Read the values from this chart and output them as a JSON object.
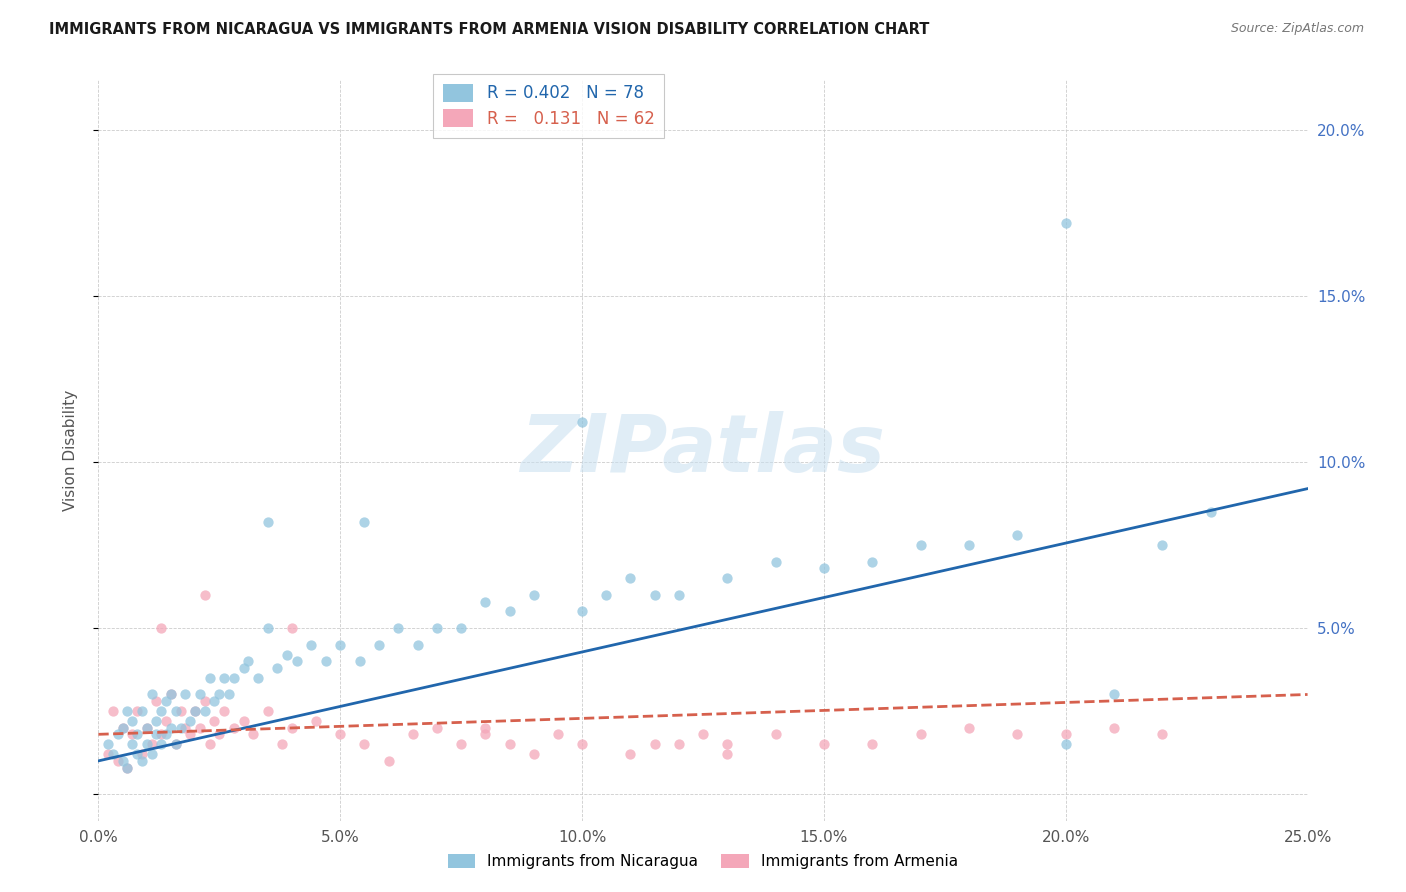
{
  "title": "IMMIGRANTS FROM NICARAGUA VS IMMIGRANTS FROM ARMENIA VISION DISABILITY CORRELATION CHART",
  "source": "Source: ZipAtlas.com",
  "ylabel": "Vision Disability",
  "xlim": [
    0.0,
    0.25
  ],
  "ylim": [
    -0.008,
    0.215
  ],
  "nicaragua_color": "#92c5de",
  "armenia_color": "#f4a7b9",
  "nicaragua_line_color": "#2166ac",
  "armenia_line_color": "#d6604d",
  "R_nicaragua": 0.402,
  "N_nicaragua": 78,
  "R_armenia": 0.131,
  "N_armenia": 62,
  "legend_label_nicaragua": "Immigrants from Nicaragua",
  "legend_label_armenia": "Immigrants from Armenia",
  "watermark": "ZIPatlas",
  "nicaragua_scatter_x": [
    0.002,
    0.003,
    0.004,
    0.005,
    0.005,
    0.006,
    0.006,
    0.007,
    0.007,
    0.008,
    0.008,
    0.009,
    0.009,
    0.01,
    0.01,
    0.011,
    0.011,
    0.012,
    0.012,
    0.013,
    0.013,
    0.014,
    0.014,
    0.015,
    0.015,
    0.016,
    0.016,
    0.017,
    0.018,
    0.019,
    0.02,
    0.021,
    0.022,
    0.023,
    0.024,
    0.025,
    0.026,
    0.027,
    0.028,
    0.03,
    0.031,
    0.033,
    0.035,
    0.037,
    0.039,
    0.041,
    0.044,
    0.047,
    0.05,
    0.054,
    0.058,
    0.062,
    0.066,
    0.07,
    0.075,
    0.08,
    0.085,
    0.09,
    0.1,
    0.105,
    0.11,
    0.115,
    0.12,
    0.13,
    0.14,
    0.15,
    0.16,
    0.17,
    0.18,
    0.19,
    0.2,
    0.21,
    0.22,
    0.23,
    0.035,
    0.055,
    0.1,
    0.2
  ],
  "nicaragua_scatter_y": [
    0.015,
    0.012,
    0.018,
    0.02,
    0.01,
    0.025,
    0.008,
    0.022,
    0.015,
    0.018,
    0.012,
    0.025,
    0.01,
    0.02,
    0.015,
    0.03,
    0.012,
    0.022,
    0.018,
    0.025,
    0.015,
    0.028,
    0.018,
    0.03,
    0.02,
    0.025,
    0.015,
    0.02,
    0.03,
    0.022,
    0.025,
    0.03,
    0.025,
    0.035,
    0.028,
    0.03,
    0.035,
    0.03,
    0.035,
    0.038,
    0.04,
    0.035,
    0.05,
    0.038,
    0.042,
    0.04,
    0.045,
    0.04,
    0.045,
    0.04,
    0.045,
    0.05,
    0.045,
    0.05,
    0.05,
    0.058,
    0.055,
    0.06,
    0.055,
    0.06,
    0.065,
    0.06,
    0.06,
    0.065,
    0.07,
    0.068,
    0.07,
    0.075,
    0.075,
    0.078,
    0.015,
    0.03,
    0.075,
    0.085,
    0.082,
    0.082,
    0.112,
    0.172
  ],
  "armenia_scatter_x": [
    0.002,
    0.003,
    0.004,
    0.005,
    0.006,
    0.007,
    0.008,
    0.009,
    0.01,
    0.011,
    0.012,
    0.013,
    0.014,
    0.015,
    0.016,
    0.017,
    0.018,
    0.019,
    0.02,
    0.021,
    0.022,
    0.023,
    0.024,
    0.025,
    0.026,
    0.028,
    0.03,
    0.032,
    0.035,
    0.038,
    0.04,
    0.045,
    0.05,
    0.055,
    0.06,
    0.065,
    0.07,
    0.075,
    0.08,
    0.085,
    0.09,
    0.095,
    0.1,
    0.11,
    0.115,
    0.12,
    0.125,
    0.13,
    0.14,
    0.15,
    0.16,
    0.17,
    0.18,
    0.19,
    0.2,
    0.21,
    0.22,
    0.013,
    0.022,
    0.04,
    0.08,
    0.13
  ],
  "armenia_scatter_y": [
    0.012,
    0.025,
    0.01,
    0.02,
    0.008,
    0.018,
    0.025,
    0.012,
    0.02,
    0.015,
    0.028,
    0.018,
    0.022,
    0.03,
    0.015,
    0.025,
    0.02,
    0.018,
    0.025,
    0.02,
    0.028,
    0.015,
    0.022,
    0.018,
    0.025,
    0.02,
    0.022,
    0.018,
    0.025,
    0.015,
    0.02,
    0.022,
    0.018,
    0.015,
    0.01,
    0.018,
    0.02,
    0.015,
    0.018,
    0.015,
    0.012,
    0.018,
    0.015,
    0.012,
    0.015,
    0.015,
    0.018,
    0.015,
    0.018,
    0.015,
    0.015,
    0.018,
    0.02,
    0.018,
    0.018,
    0.02,
    0.018,
    0.05,
    0.06,
    0.05,
    0.02,
    0.012
  ]
}
